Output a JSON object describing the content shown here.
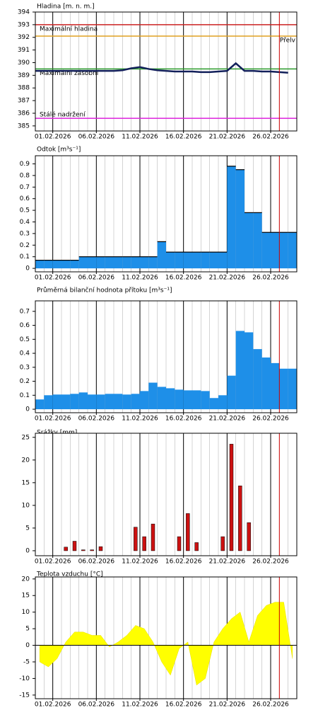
{
  "chart_data": [
    {
      "type": "line",
      "title": "Hladina [m. n. m.]",
      "xlim": [
        "2026-01-30",
        "2026-03-01"
      ],
      "xticks": [
        {
          "value": "2026-02-01",
          "label": "01.02.2026"
        },
        {
          "value": "2026-02-06",
          "label": "06.02.2026"
        },
        {
          "value": "2026-02-11",
          "label": "11.02.2026"
        },
        {
          "value": "2026-02-16",
          "label": "16.02.2026"
        },
        {
          "value": "2026-02-21",
          "label": "21.02.2026"
        },
        {
          "value": "2026-02-26",
          "label": "26.02.2026"
        }
      ],
      "ylim": [
        384.6,
        394
      ],
      "yticks": [
        385,
        386,
        387,
        388,
        389,
        390,
        391,
        392,
        393,
        394
      ],
      "marker_x": "2026-02-27",
      "marker_color": "#cc0000",
      "thresholds": [
        {
          "label": "Maximální hladina",
          "value": 393,
          "color": "#cc2222",
          "anchor": "left",
          "side": "below"
        },
        {
          "label": "Přelv",
          "value": 392.1,
          "color": "#e0a020",
          "anchor": "right",
          "side": "below"
        },
        {
          "label": "Maximální zásobní",
          "value": 389.5,
          "color": "#2a9a2a",
          "anchor": "left",
          "side": "below"
        },
        {
          "label": "Stálé nadržení",
          "value": 385.6,
          "color": "#dd22dd",
          "anchor": "left",
          "side": "above"
        }
      ],
      "x": [
        "2026-01-30",
        "2026-01-31",
        "2026-02-01",
        "2026-02-02",
        "2026-02-03",
        "2026-02-04",
        "2026-02-05",
        "2026-02-06",
        "2026-02-07",
        "2026-02-08",
        "2026-02-09",
        "2026-02-10",
        "2026-02-11",
        "2026-02-12",
        "2026-02-13",
        "2026-02-14",
        "2026-02-15",
        "2026-02-16",
        "2026-02-17",
        "2026-02-18",
        "2026-02-19",
        "2026-02-20",
        "2026-02-21",
        "2026-02-22",
        "2026-02-23",
        "2026-02-24",
        "2026-02-25",
        "2026-02-26",
        "2026-02-27",
        "2026-02-28"
      ],
      "values": [
        389.35,
        389.35,
        389.35,
        389.35,
        389.35,
        389.35,
        389.35,
        389.35,
        389.35,
        389.35,
        389.4,
        389.55,
        389.65,
        389.5,
        389.4,
        389.35,
        389.3,
        389.3,
        389.3,
        389.25,
        389.25,
        389.3,
        389.35,
        389.95,
        389.35,
        389.35,
        389.3,
        389.3,
        389.25,
        389.2
      ],
      "color": "#12205a"
    },
    {
      "type": "step",
      "title": "Odtok [m³s⁻¹]",
      "xlim": [
        "2026-01-30",
        "2026-03-01"
      ],
      "xticks": [
        {
          "value": "2026-02-01",
          "label": "01.02.2026"
        },
        {
          "value": "2026-02-06",
          "label": "06.02.2026"
        },
        {
          "value": "2026-02-11",
          "label": "11.02.2026"
        },
        {
          "value": "2026-02-16",
          "label": "16.02.2026"
        },
        {
          "value": "2026-02-21",
          "label": "21.02.2026"
        },
        {
          "value": "2026-02-26",
          "label": "26.02.2026"
        }
      ],
      "ylim": [
        -0.03,
        0.97
      ],
      "yticks": [
        0,
        0.1,
        0.2,
        0.3,
        0.4,
        0.5,
        0.6,
        0.7,
        0.8,
        0.9
      ],
      "marker_x": "2026-02-27",
      "marker_color": "#cc0000",
      "x": [
        "2026-01-30",
        "2026-01-31",
        "2026-02-01",
        "2026-02-02",
        "2026-02-03",
        "2026-02-04",
        "2026-02-05",
        "2026-02-06",
        "2026-02-07",
        "2026-02-08",
        "2026-02-09",
        "2026-02-10",
        "2026-02-11",
        "2026-02-12",
        "2026-02-13",
        "2026-02-14",
        "2026-02-15",
        "2026-02-16",
        "2026-02-17",
        "2026-02-18",
        "2026-02-19",
        "2026-02-20",
        "2026-02-21",
        "2026-02-22",
        "2026-02-23",
        "2026-02-24",
        "2026-02-25",
        "2026-02-26",
        "2026-02-27",
        "2026-02-28"
      ],
      "values": [
        0.07,
        0.07,
        0.07,
        0.07,
        0.07,
        0.1,
        0.1,
        0.1,
        0.1,
        0.1,
        0.1,
        0.1,
        0.1,
        0.1,
        0.23,
        0.14,
        0.14,
        0.14,
        0.14,
        0.14,
        0.14,
        0.14,
        0.88,
        0.85,
        0.48,
        0.48,
        0.31,
        0.31,
        0.31,
        0.31
      ],
      "color": "#1e8fe8",
      "line_color": "#000000"
    },
    {
      "type": "step",
      "title": "Průměrná bilanční hodnota přítoku [m³s⁻¹]",
      "xlim": [
        "2026-01-30",
        "2026-03-01"
      ],
      "xticks": [
        {
          "value": "2026-02-01",
          "label": "01.02.2026"
        },
        {
          "value": "2026-02-06",
          "label": "06.02.2026"
        },
        {
          "value": "2026-02-11",
          "label": "11.02.2026"
        },
        {
          "value": "2026-02-16",
          "label": "16.02.2026"
        },
        {
          "value": "2026-02-21",
          "label": "21.02.2026"
        },
        {
          "value": "2026-02-26",
          "label": "26.02.2026"
        }
      ],
      "ylim": [
        -0.025,
        0.775
      ],
      "yticks": [
        0,
        0.1,
        0.2,
        0.3,
        0.4,
        0.5,
        0.6,
        0.7
      ],
      "marker_x": "2026-02-27",
      "marker_color": "#cc0000",
      "x": [
        "2026-01-30",
        "2026-01-31",
        "2026-02-01",
        "2026-02-02",
        "2026-02-03",
        "2026-02-04",
        "2026-02-05",
        "2026-02-06",
        "2026-02-07",
        "2026-02-08",
        "2026-02-09",
        "2026-02-10",
        "2026-02-11",
        "2026-02-12",
        "2026-02-13",
        "2026-02-14",
        "2026-02-15",
        "2026-02-16",
        "2026-02-17",
        "2026-02-18",
        "2026-02-19",
        "2026-02-20",
        "2026-02-21",
        "2026-02-22",
        "2026-02-23",
        "2026-02-24",
        "2026-02-25",
        "2026-02-26",
        "2026-02-27",
        "2026-02-28"
      ],
      "values": [
        0.07,
        0.1,
        0.105,
        0.105,
        0.11,
        0.12,
        0.105,
        0.105,
        0.11,
        0.11,
        0.105,
        0.11,
        0.13,
        0.19,
        0.16,
        0.15,
        0.14,
        0.135,
        0.135,
        0.13,
        0.08,
        0.1,
        0.24,
        0.56,
        0.55,
        0.43,
        0.37,
        0.33,
        0.29,
        0.29
      ],
      "color": "#1e8fe8"
    },
    {
      "type": "bar",
      "title": "Srážky [mm]",
      "xlim": [
        "2026-01-30",
        "2026-03-01"
      ],
      "xticks": [
        {
          "value": "2026-02-01",
          "label": "01.02.2026"
        },
        {
          "value": "2026-02-06",
          "label": "06.02.2026"
        },
        {
          "value": "2026-02-11",
          "label": "11.02.2026"
        },
        {
          "value": "2026-02-16",
          "label": "16.02.2026"
        },
        {
          "value": "2026-02-21",
          "label": "21.02.2026"
        },
        {
          "value": "2026-02-26",
          "label": "26.02.2026"
        }
      ],
      "ylim": [
        -1.1,
        25.9
      ],
      "yticks": [
        0,
        5,
        10,
        15,
        20,
        25
      ],
      "marker_x": "2026-02-27",
      "marker_color": "#cc0000",
      "x": [
        "2026-01-30",
        "2026-01-31",
        "2026-02-01",
        "2026-02-02",
        "2026-02-03",
        "2026-02-04",
        "2026-02-05",
        "2026-02-06",
        "2026-02-07",
        "2026-02-08",
        "2026-02-09",
        "2026-02-10",
        "2026-02-11",
        "2026-02-12",
        "2026-02-13",
        "2026-02-14",
        "2026-02-15",
        "2026-02-16",
        "2026-02-17",
        "2026-02-18",
        "2026-02-19",
        "2026-02-20",
        "2026-02-21",
        "2026-02-22",
        "2026-02-23",
        "2026-02-24",
        "2026-02-25",
        "2026-02-26",
        "2026-02-27",
        "2026-02-28"
      ],
      "values": [
        0,
        0,
        0,
        0.8,
        2.1,
        0.2,
        0.2,
        0.9,
        0,
        0,
        0,
        5.2,
        3.1,
        5.9,
        0,
        0,
        3.1,
        8.2,
        1.8,
        0,
        0,
        3.1,
        23.5,
        14.3,
        6.2,
        0,
        0,
        0,
        0,
        0
      ],
      "color": "#cc1111"
    },
    {
      "type": "area",
      "title": "Teplota vzduchu [°C]",
      "xlim": [
        "2026-01-30",
        "2026-03-01"
      ],
      "xticks": [
        {
          "value": "2026-02-01",
          "label": "01.02.2026"
        },
        {
          "value": "2026-02-06",
          "label": "06.02.2026"
        },
        {
          "value": "2026-02-11",
          "label": "11.02.2026"
        },
        {
          "value": "2026-02-16",
          "label": "16.02.2026"
        },
        {
          "value": "2026-02-21",
          "label": "21.02.2026"
        },
        {
          "value": "2026-02-26",
          "label": "26.02.2026"
        }
      ],
      "ylim": [
        -16.1,
        20.6
      ],
      "yticks": [
        -15,
        -10,
        -5,
        0,
        5,
        10,
        15,
        20
      ],
      "marker_x": "2026-02-27",
      "marker_color": "#cc0000",
      "zero_line": true,
      "x": [
        "2026-01-30",
        "2026-01-31",
        "2026-02-01",
        "2026-02-02",
        "2026-02-03",
        "2026-02-04",
        "2026-02-05",
        "2026-02-06",
        "2026-02-07",
        "2026-02-08",
        "2026-02-09",
        "2026-02-10",
        "2026-02-11",
        "2026-02-12",
        "2026-02-13",
        "2026-02-14",
        "2026-02-15",
        "2026-02-16",
        "2026-02-17",
        "2026-02-18",
        "2026-02-19",
        "2026-02-20",
        "2026-02-21",
        "2026-02-22",
        "2026-02-23",
        "2026-02-24",
        "2026-02-25",
        "2026-02-26",
        "2026-02-27",
        "2026-02-28"
      ],
      "values": [
        -5,
        -6.5,
        -4,
        1,
        4,
        4,
        3,
        3,
        -0.5,
        1,
        3,
        6,
        5,
        1,
        -5,
        -9,
        -1,
        1,
        -12,
        -10,
        1,
        5,
        8,
        10,
        1,
        9,
        12,
        13,
        13,
        -4
      ],
      "color": "#ffff00"
    }
  ]
}
